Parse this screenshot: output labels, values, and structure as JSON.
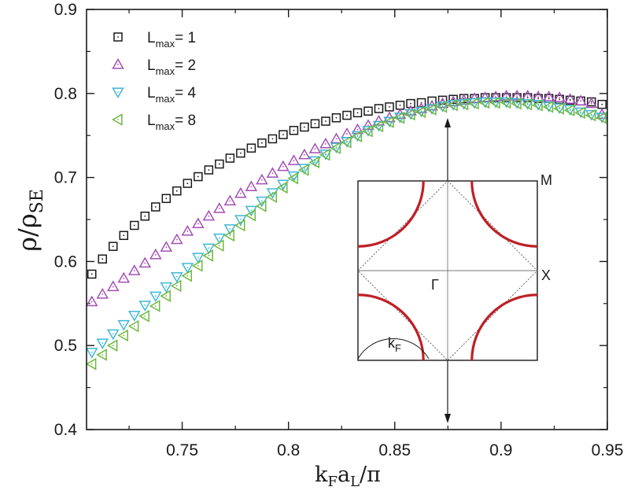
{
  "chart_data": {
    "type": "scatter",
    "title": "",
    "xlabel": {
      "main": "k",
      "sub1": "F",
      "mid": "a",
      "sub2": "L",
      "tail": "/π"
    },
    "ylabel": {
      "main": "ρ/ρ",
      "sub": "SE"
    },
    "xlim": [
      0.705,
      0.95
    ],
    "ylim": [
      0.4,
      0.9
    ],
    "xticks": [
      0.75,
      0.8,
      0.85,
      0.9,
      0.95
    ],
    "xtick_labels": [
      "0.75",
      "0.8",
      "0.85",
      "0.9",
      "0.95"
    ],
    "yticks": [
      0.4,
      0.5,
      0.6,
      0.7,
      0.8,
      0.9
    ],
    "ytick_labels": [
      "0.4",
      "0.5",
      "0.6",
      "0.7",
      "0.8",
      "0.9"
    ],
    "legend_position": "top-left",
    "grid": false,
    "x_start": 0.7075,
    "x_step": 0.005,
    "x_count": 49,
    "series": [
      {
        "label_main": "L",
        "label_sub": "max",
        "label_value": "= 1",
        "marker": "square",
        "color": "#1a1a1a",
        "values": [
          0.585,
          0.603,
          0.618,
          0.631,
          0.643,
          0.654,
          0.665,
          0.675,
          0.684,
          0.693,
          0.701,
          0.709,
          0.716,
          0.723,
          0.729,
          0.735,
          0.741,
          0.746,
          0.751,
          0.756,
          0.76,
          0.764,
          0.767,
          0.771,
          0.774,
          0.777,
          0.779,
          0.782,
          0.784,
          0.786,
          0.788,
          0.789,
          0.791,
          0.792,
          0.793,
          0.794,
          0.794,
          0.795,
          0.795,
          0.795,
          0.795,
          0.795,
          0.794,
          0.794,
          0.793,
          0.792,
          0.791,
          0.79,
          0.787
        ]
      },
      {
        "label_main": "L",
        "label_sub": "max",
        "label_value": "= 2",
        "marker": "triangle-up",
        "color": "#a44fb6",
        "values": [
          0.552,
          0.561,
          0.57,
          0.58,
          0.589,
          0.598,
          0.608,
          0.617,
          0.626,
          0.636,
          0.645,
          0.654,
          0.663,
          0.672,
          0.681,
          0.689,
          0.697,
          0.705,
          0.713,
          0.72,
          0.727,
          0.734,
          0.74,
          0.746,
          0.752,
          0.757,
          0.762,
          0.767,
          0.771,
          0.775,
          0.779,
          0.782,
          0.785,
          0.788,
          0.79,
          0.792,
          0.794,
          0.795,
          0.796,
          0.797,
          0.797,
          0.797,
          0.796,
          0.796,
          0.795,
          0.793,
          0.791,
          0.788,
          0.775
        ]
      },
      {
        "label_main": "L",
        "label_sub": "max",
        "label_value": "= 4",
        "marker": "triangle-down",
        "color": "#3eb8d6",
        "values": [
          0.492,
          0.503,
          0.514,
          0.525,
          0.536,
          0.548,
          0.559,
          0.57,
          0.582,
          0.593,
          0.605,
          0.616,
          0.628,
          0.639,
          0.65,
          0.661,
          0.672,
          0.682,
          0.692,
          0.702,
          0.711,
          0.72,
          0.728,
          0.736,
          0.743,
          0.75,
          0.756,
          0.762,
          0.767,
          0.772,
          0.776,
          0.779,
          0.782,
          0.785,
          0.787,
          0.788,
          0.789,
          0.79,
          0.79,
          0.79,
          0.789,
          0.788,
          0.787,
          0.785,
          0.783,
          0.781,
          0.778,
          0.775,
          0.772
        ]
      },
      {
        "label_main": "L",
        "label_sub": "max",
        "label_value": "= 8",
        "marker": "triangle-left",
        "color": "#6fb83e",
        "values": [
          0.478,
          0.489,
          0.5,
          0.512,
          0.523,
          0.535,
          0.547,
          0.559,
          0.571,
          0.583,
          0.595,
          0.607,
          0.619,
          0.631,
          0.643,
          0.655,
          0.666,
          0.677,
          0.688,
          0.699,
          0.709,
          0.718,
          0.727,
          0.735,
          0.742,
          0.749,
          0.755,
          0.761,
          0.766,
          0.771,
          0.775,
          0.778,
          0.781,
          0.784,
          0.786,
          0.787,
          0.788,
          0.789,
          0.789,
          0.789,
          0.788,
          0.787,
          0.786,
          0.784,
          0.782,
          0.78,
          0.777,
          0.774,
          0.771
        ]
      }
    ],
    "inset": {
      "label_M": "M",
      "label_X": "X",
      "label_Gamma": "Γ",
      "label_kF": {
        "main": "k",
        "sub": "F"
      },
      "curve_color": "#bf2026",
      "arrow_color": "#1a1a1a"
    }
  }
}
